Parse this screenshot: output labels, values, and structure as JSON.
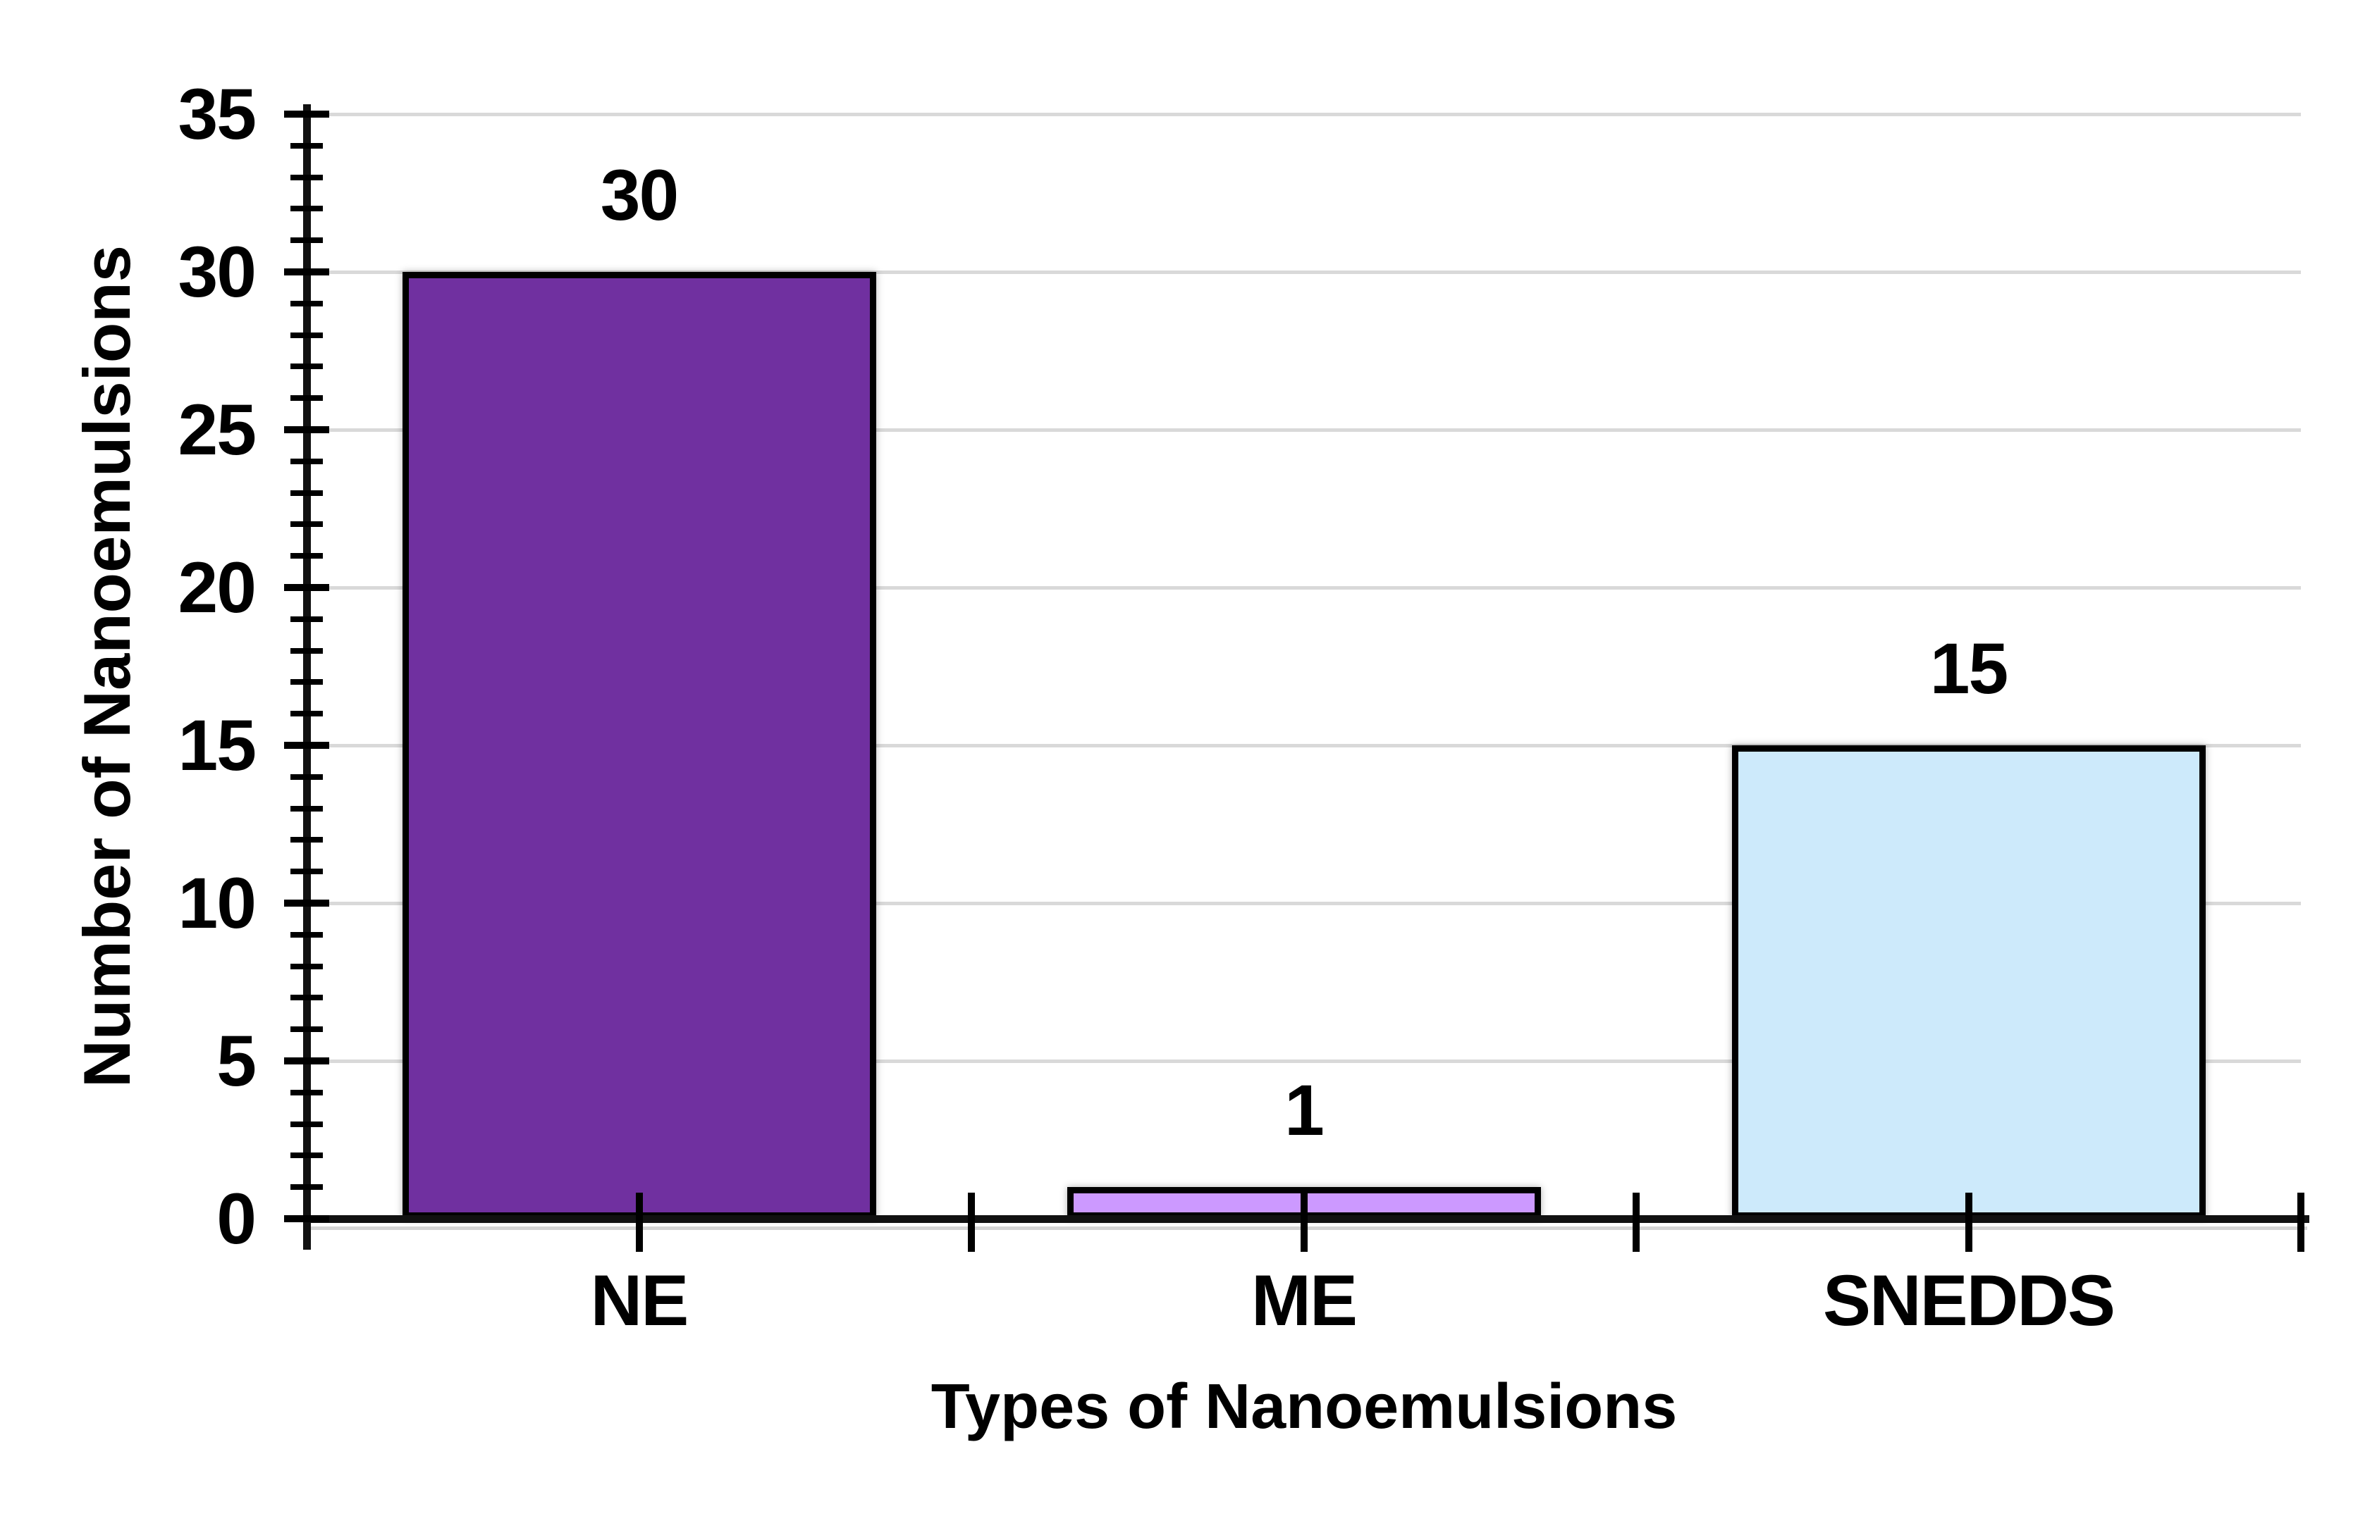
{
  "chart_data": {
    "type": "bar",
    "title": "",
    "xlabel": "Types of Nanoemulsions",
    "ylabel": "Number of Nanoemulsions",
    "categories": [
      "NE",
      "ME",
      "SNEDDS"
    ],
    "values": [
      30,
      1,
      15
    ],
    "data_labels": [
      "30",
      "1",
      "15"
    ],
    "bar_colors": [
      "#7030A0",
      "#CC99FF",
      "#CDEAFB"
    ],
    "bar_border_color": "#000000",
    "ylim": [
      0,
      35
    ],
    "ytick_step": 5,
    "yminor_tick_step": 1,
    "ytick_labels": [
      "0",
      "5",
      "10",
      "15",
      "20",
      "25",
      "30",
      "35"
    ],
    "grid": "horizontal-major-on",
    "gridline_color": "#D9D9D9",
    "axis_color": "#111111",
    "tick_color": "#000000",
    "text_color": "#000000",
    "background_color": "#FFFFFF",
    "legend": "none"
  }
}
